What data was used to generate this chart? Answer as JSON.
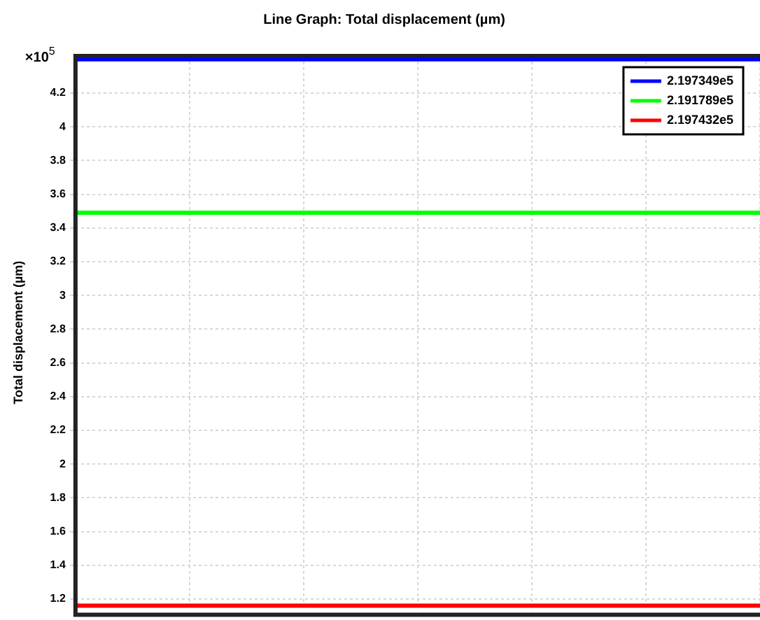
{
  "chart_data": {
    "type": "line",
    "title": "Line Graph: Total displacement (µm)",
    "ylabel": "Total displacement (µm)",
    "annotations": [
      "×10$^{5}$"
    ],
    "categories": [
      null,
      null,
      null,
      null,
      null,
      null,
      null
    ],
    "series": [
      {
        "name": "2.197349e5",
        "color": "#0000ff",
        "values": [
          4.4,
          4.4,
          4.4,
          4.4,
          4.4,
          4.4,
          4.4
        ]
      },
      {
        "name": "2.191789e5",
        "color": "#00ff00",
        "values": [
          3.49,
          3.49,
          3.49,
          3.49,
          3.49,
          3.49,
          3.49
        ]
      },
      {
        "name": "2.197432e5",
        "color": "#ff0000",
        "values": [
          1.16,
          1.16,
          1.16,
          1.16,
          1.16,
          1.16,
          1.16
        ]
      }
    ],
    "ylim": [
      1.14,
      4.42
    ],
    "yticks": [
      1.2,
      1.4,
      1.6,
      1.8,
      2,
      2.2,
      2.4,
      2.6,
      2.8,
      3,
      3.2,
      3.4,
      3.6,
      3.8,
      4,
      4.2
    ],
    "grid": true,
    "legend": "top right",
    "tick_labels": "y",
    "marker": "none",
    "line_style": "solid"
  }
}
